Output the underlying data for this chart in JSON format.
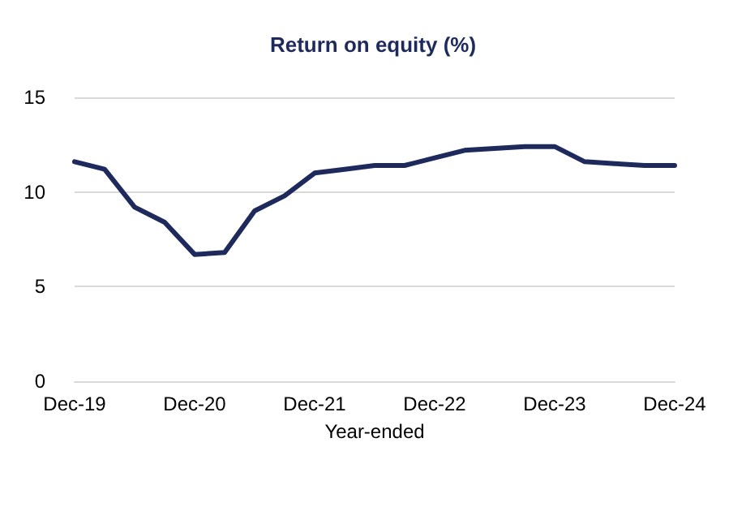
{
  "chart_data": {
    "type": "line",
    "title": "Return on equity (%)",
    "xlabel": "Year-ended",
    "categories": [
      "Dec-19",
      null,
      null,
      null,
      "Dec-20",
      null,
      null,
      null,
      "Dec-21",
      null,
      null,
      null,
      "Dec-22",
      null,
      null,
      null,
      "Dec-23",
      null,
      null,
      null,
      "Dec-24"
    ],
    "series": [
      {
        "color": "#1f2a5c",
        "values": [
          11.6,
          11.2,
          9.2,
          8.4,
          6.7,
          6.8,
          9.0,
          9.8,
          11.0,
          11.2,
          11.4,
          11.4,
          11.8,
          12.2,
          12.3,
          12.4,
          12.4,
          11.6,
          11.5,
          11.4,
          11.4
        ]
      }
    ],
    "ylim": [
      0,
      15
    ],
    "yticks": [
      0,
      5,
      10,
      15
    ],
    "grid": "y",
    "marker": "none",
    "line_style": "solid"
  }
}
